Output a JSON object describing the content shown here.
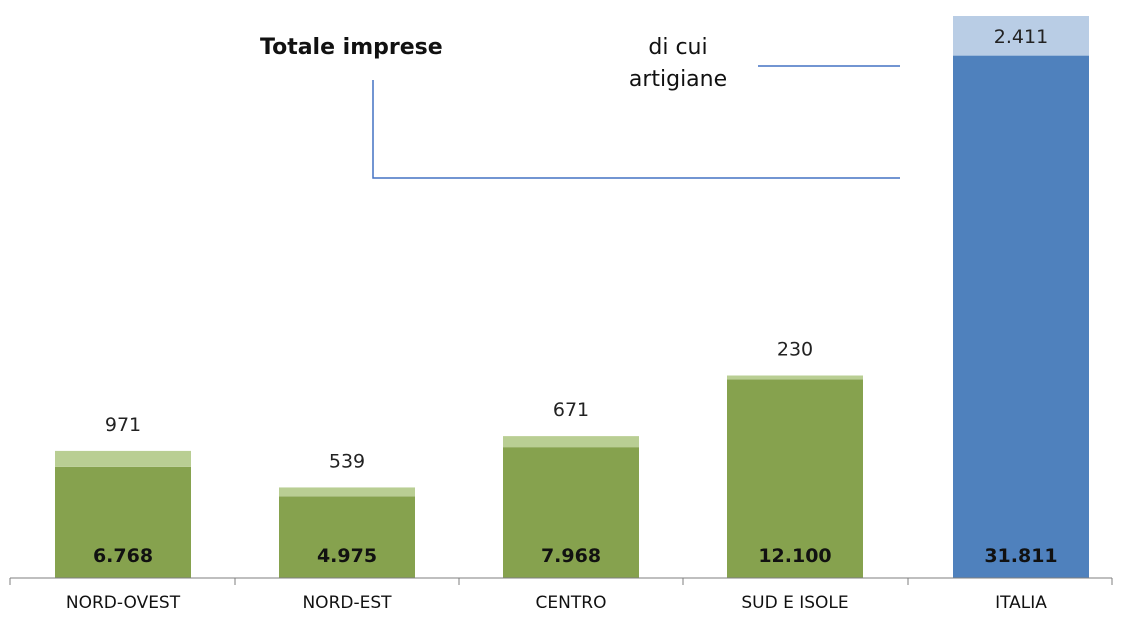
{
  "chart_data": {
    "type": "bar",
    "stacked": true,
    "categories": [
      "NORD-OVEST",
      "NORD-EST",
      "CENTRO",
      "SUD E ISOLE",
      "ITALIA"
    ],
    "series": [
      {
        "name": "Totale imprese",
        "values": [
          6768,
          4975,
          7968,
          12100,
          31811
        ],
        "labels": [
          "6.768",
          "4.975",
          "7.968",
          "12.100",
          "31.811"
        ]
      },
      {
        "name": "di cui artigiane",
        "values": [
          971,
          539,
          671,
          230,
          2411
        ],
        "labels": [
          "971",
          "539",
          "671",
          "230",
          "2.411"
        ]
      }
    ],
    "colors": {
      "region_total": "#86A24E",
      "region_artisan": "#B9CE93",
      "italia_total": "#4F81BD",
      "italia_artisan": "#B9CDE5",
      "axis": "#7F7F7F",
      "legend_line": "#4472C4"
    },
    "legend": {
      "total_label": "Totale imprese",
      "artisan_line1": "di cui",
      "artisan_line2": "artigiane"
    },
    "grid": false,
    "legend_position": "top"
  }
}
